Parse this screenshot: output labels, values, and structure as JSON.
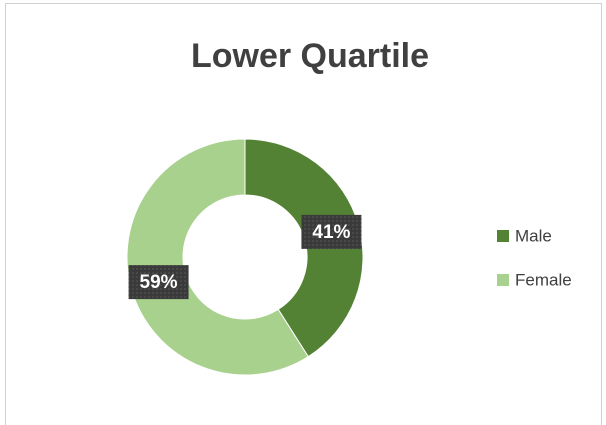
{
  "chart_data": {
    "type": "donut",
    "title": "Lower Quartile",
    "categories": [
      "Male",
      "Female"
    ],
    "values": [
      41,
      59
    ],
    "value_labels": [
      "41%",
      "59%"
    ],
    "colors": [
      "#548235",
      "#a9d18e"
    ],
    "legend": "right"
  }
}
